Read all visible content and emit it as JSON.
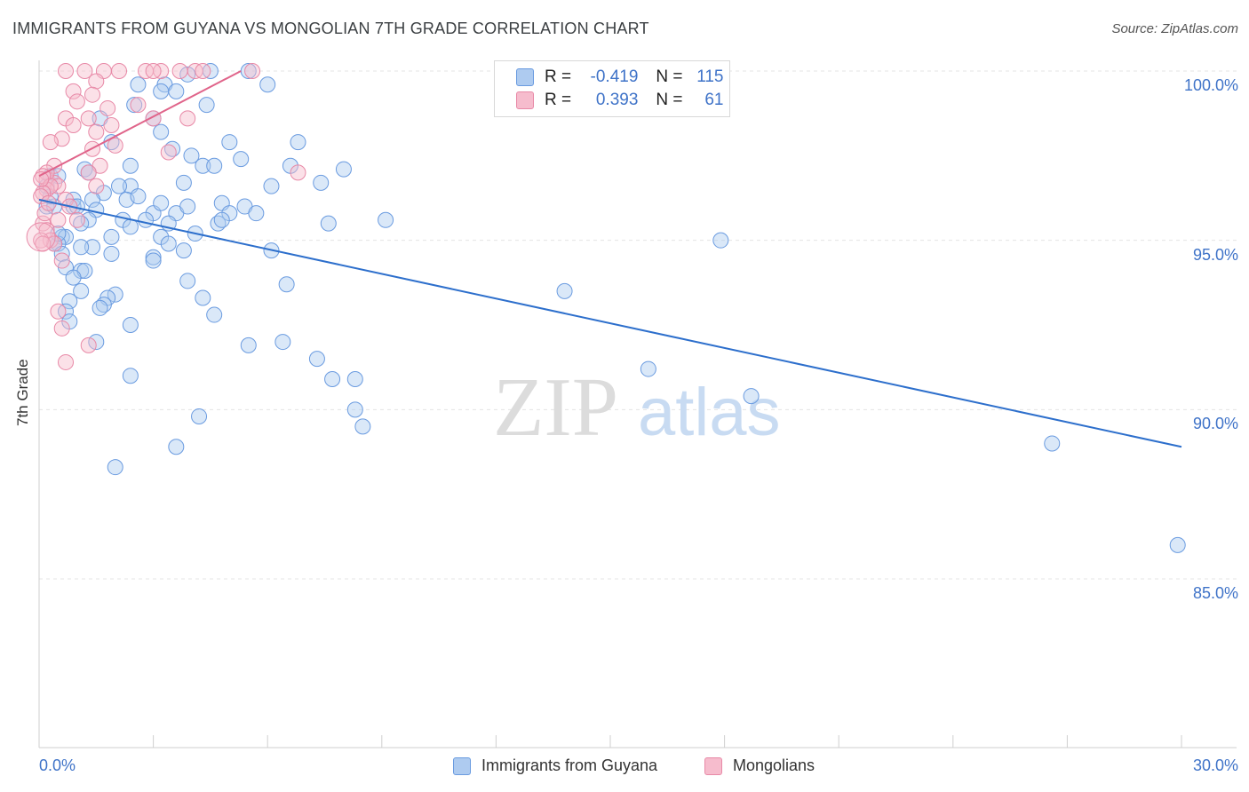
{
  "header": {
    "title": "IMMIGRANTS FROM GUYANA VS MONGOLIAN 7TH GRADE CORRELATION CHART",
    "source": "Source: ZipAtlas.com"
  },
  "watermark": {
    "zip": "ZIP",
    "atlas": "atlas"
  },
  "legend": {
    "rows": [
      {
        "r_label": "R =",
        "r_value": "-0.419",
        "n_label": "N =",
        "n_value": "115"
      },
      {
        "r_label": "R =",
        "r_value": "0.393",
        "n_label": "N =",
        "n_value": "61"
      }
    ]
  },
  "bottom_legend": [
    {
      "label": "Immigrants from Guyana"
    },
    {
      "label": "Mongolians"
    }
  ],
  "colors": {
    "blue_fill": "#aecbf0",
    "blue_stroke": "#6a9be0",
    "blue_line": "#2d6fcc",
    "pink_fill": "#f6bccd",
    "pink_stroke": "#e889a7",
    "pink_line": "#e0648a",
    "tick_text": "#3f73c8",
    "grid": "#e4e4e4"
  },
  "chart_data": {
    "type": "scatter",
    "title": "IMMIGRANTS FROM GUYANA VS MONGOLIAN 7TH GRADE CORRELATION CHART",
    "xlabel": "",
    "ylabel": "7th Grade",
    "xlim": [
      0,
      30
    ],
    "ylim": [
      80.5,
      100.5
    ],
    "x_tick_labels": [
      {
        "value": 0,
        "label": "0.0%"
      },
      {
        "value": 30,
        "label": "30.0%"
      }
    ],
    "y_tick_labels": [
      {
        "value": 100,
        "label": "100.0%"
      },
      {
        "value": 95,
        "label": "95.0%"
      },
      {
        "value": 90,
        "label": "90.0%"
      },
      {
        "value": 85,
        "label": "85.0%"
      }
    ],
    "series": [
      {
        "name": "Immigrants from Guyana",
        "R": -0.419,
        "N": 115,
        "trend": {
          "x": [
            0,
            30
          ],
          "y": [
            96.2,
            88.9
          ]
        },
        "points": [
          [
            3.9,
            99.9
          ],
          [
            4.5,
            100.0
          ],
          [
            5.5,
            100.0
          ],
          [
            2.6,
            99.6
          ],
          [
            3.3,
            99.6
          ],
          [
            6.0,
            99.6
          ],
          [
            3.2,
            99.4
          ],
          [
            3.6,
            99.4
          ],
          [
            2.5,
            99.0
          ],
          [
            4.4,
            99.0
          ],
          [
            1.6,
            98.6
          ],
          [
            3.0,
            98.6
          ],
          [
            3.2,
            98.2
          ],
          [
            1.9,
            97.9
          ],
          [
            5.0,
            97.9
          ],
          [
            6.8,
            97.9
          ],
          [
            3.5,
            97.7
          ],
          [
            4.0,
            97.5
          ],
          [
            5.3,
            97.4
          ],
          [
            2.4,
            97.2
          ],
          [
            4.3,
            97.2
          ],
          [
            4.6,
            97.2
          ],
          [
            6.6,
            97.2
          ],
          [
            8.0,
            97.1
          ],
          [
            1.2,
            97.1
          ],
          [
            0.3,
            96.9
          ],
          [
            0.5,
            96.9
          ],
          [
            3.8,
            96.7
          ],
          [
            7.4,
            96.7
          ],
          [
            6.1,
            96.6
          ],
          [
            2.4,
            96.6
          ],
          [
            1.7,
            96.4
          ],
          [
            1.4,
            96.2
          ],
          [
            2.3,
            96.2
          ],
          [
            4.8,
            96.1
          ],
          [
            5.4,
            96.0
          ],
          [
            0.2,
            96.0
          ],
          [
            0.4,
            96.0
          ],
          [
            0.9,
            96.0
          ],
          [
            1.5,
            95.9
          ],
          [
            3.6,
            95.8
          ],
          [
            5.0,
            95.8
          ],
          [
            3.0,
            95.8
          ],
          [
            1.3,
            95.6
          ],
          [
            2.2,
            95.6
          ],
          [
            9.1,
            95.6
          ],
          [
            4.7,
            95.5
          ],
          [
            1.1,
            95.5
          ],
          [
            7.6,
            95.5
          ],
          [
            3.4,
            95.5
          ],
          [
            2.4,
            95.4
          ],
          [
            0.6,
            95.1
          ],
          [
            0.7,
            95.1
          ],
          [
            1.9,
            95.1
          ],
          [
            3.2,
            95.1
          ],
          [
            0.5,
            94.9
          ],
          [
            3.4,
            94.9
          ],
          [
            0.4,
            94.9
          ],
          [
            1.4,
            94.8
          ],
          [
            3.8,
            94.7
          ],
          [
            6.1,
            94.7
          ],
          [
            0.6,
            94.6
          ],
          [
            1.9,
            94.6
          ],
          [
            3.0,
            94.5
          ],
          [
            3.0,
            94.4
          ],
          [
            0.7,
            94.2
          ],
          [
            1.1,
            94.1
          ],
          [
            1.2,
            94.1
          ],
          [
            0.9,
            93.9
          ],
          [
            3.9,
            93.8
          ],
          [
            6.5,
            93.7
          ],
          [
            1.1,
            93.5
          ],
          [
            2.0,
            93.4
          ],
          [
            4.3,
            93.3
          ],
          [
            1.8,
            93.3
          ],
          [
            0.8,
            93.2
          ],
          [
            1.7,
            93.1
          ],
          [
            0.7,
            92.9
          ],
          [
            4.6,
            92.8
          ],
          [
            0.8,
            92.6
          ],
          [
            2.4,
            92.5
          ],
          [
            1.5,
            92.0
          ],
          [
            6.4,
            92.0
          ],
          [
            5.5,
            91.9
          ],
          [
            7.3,
            91.5
          ],
          [
            2.4,
            91.0
          ],
          [
            7.7,
            90.9
          ],
          [
            8.3,
            90.9
          ],
          [
            8.3,
            90.0
          ],
          [
            4.2,
            89.8
          ],
          [
            8.5,
            89.5
          ],
          [
            3.6,
            88.9
          ],
          [
            2.0,
            88.3
          ],
          [
            13.8,
            93.5
          ],
          [
            16.0,
            91.2
          ],
          [
            18.7,
            90.4
          ],
          [
            17.9,
            95.0
          ],
          [
            26.6,
            89.0
          ],
          [
            29.9,
            86.0
          ],
          [
            0.3,
            96.3
          ],
          [
            0.9,
            96.2
          ],
          [
            1.1,
            94.8
          ],
          [
            2.6,
            96.3
          ],
          [
            3.9,
            96.0
          ],
          [
            4.8,
            95.6
          ],
          [
            5.7,
            95.8
          ],
          [
            1.6,
            93.0
          ],
          [
            0.5,
            95.2
          ],
          [
            1.3,
            97.0
          ],
          [
            2.1,
            96.6
          ],
          [
            0.2,
            96.6
          ],
          [
            2.8,
            95.6
          ],
          [
            3.2,
            96.1
          ],
          [
            4.1,
            95.2
          ],
          [
            1.0,
            96.0
          ]
        ]
      },
      {
        "name": "Mongolians",
        "R": 0.393,
        "N": 61,
        "trend": {
          "x": [
            0,
            5.3
          ],
          "y": [
            96.9,
            100.0
          ]
        },
        "points": [
          [
            0.7,
            100.0
          ],
          [
            1.2,
            100.0
          ],
          [
            1.7,
            100.0
          ],
          [
            2.1,
            100.0
          ],
          [
            2.8,
            100.0
          ],
          [
            3.2,
            100.0
          ],
          [
            3.0,
            100.0
          ],
          [
            4.1,
            100.0
          ],
          [
            4.3,
            100.0
          ],
          [
            5.6,
            100.0
          ],
          [
            3.7,
            100.0
          ],
          [
            1.5,
            99.7
          ],
          [
            0.9,
            99.4
          ],
          [
            1.4,
            99.3
          ],
          [
            1.0,
            99.1
          ],
          [
            2.6,
            99.0
          ],
          [
            1.8,
            98.9
          ],
          [
            1.3,
            98.6
          ],
          [
            0.7,
            98.6
          ],
          [
            3.0,
            98.6
          ],
          [
            3.9,
            98.6
          ],
          [
            0.9,
            98.4
          ],
          [
            1.9,
            98.4
          ],
          [
            1.5,
            98.2
          ],
          [
            0.6,
            98.0
          ],
          [
            0.3,
            97.9
          ],
          [
            2.0,
            97.8
          ],
          [
            1.4,
            97.7
          ],
          [
            3.4,
            97.6
          ],
          [
            0.4,
            97.2
          ],
          [
            1.6,
            97.2
          ],
          [
            1.3,
            97.0
          ],
          [
            6.8,
            97.0
          ],
          [
            0.2,
            96.8
          ],
          [
            0.4,
            96.7
          ],
          [
            0.5,
            96.6
          ],
          [
            1.5,
            96.6
          ],
          [
            0.2,
            96.5
          ],
          [
            0.7,
            96.2
          ],
          [
            0.8,
            96.0
          ],
          [
            0.5,
            95.6
          ],
          [
            1.0,
            95.6
          ],
          [
            0.1,
            95.5
          ],
          [
            0.2,
            95.3
          ],
          [
            0.3,
            95.0
          ],
          [
            0.4,
            94.9
          ],
          [
            0.6,
            94.4
          ],
          [
            0.5,
            92.9
          ],
          [
            0.6,
            92.4
          ],
          [
            1.3,
            91.9
          ],
          [
            0.7,
            91.4
          ],
          [
            0.2,
            97.0
          ],
          [
            0.1,
            96.9
          ],
          [
            0.3,
            96.6
          ],
          [
            0.1,
            96.4
          ],
          [
            0.05,
            96.3
          ],
          [
            0.05,
            96.8
          ],
          [
            0.15,
            95.8
          ],
          [
            0.05,
            95.0
          ],
          [
            0.1,
            94.9
          ],
          [
            0.25,
            96.1
          ]
        ]
      }
    ]
  }
}
